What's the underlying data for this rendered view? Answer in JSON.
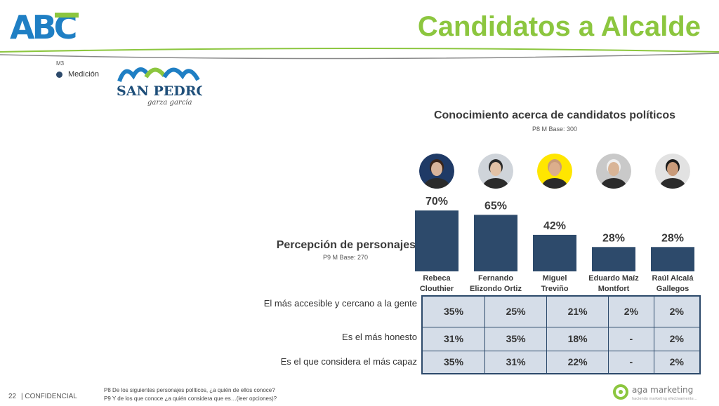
{
  "header": {
    "logo_text": "ABC",
    "title": "Candidatos a Alcalde",
    "legend_code": "M3",
    "legend_label": "Medición",
    "sp_logo_main": "SAN PEDRO",
    "sp_logo_script": "garza garcía"
  },
  "chart_title": "Conocimiento acerca de candidatos políticos",
  "chart_subtitle": "P8 M Base: 300",
  "perception_title": "Percepción de personajes",
  "perception_subtitle": "P9 M Base: 270",
  "chart_data": {
    "type": "bar",
    "title": "Conocimiento acerca de candidatos políticos",
    "categories": [
      [
        "Rebeca",
        "Clouthier"
      ],
      [
        "Fernando",
        "Elizondo Ortiz"
      ],
      [
        "Miguel",
        "Treviño"
      ],
      [
        "Eduardo Maíz",
        "Montfort"
      ],
      [
        "Raúl Alcalá",
        "Gallegos"
      ]
    ],
    "values": [
      70,
      65,
      42,
      28,
      28
    ],
    "value_labels": [
      "70%",
      "65%",
      "42%",
      "28%",
      "28%"
    ],
    "unit": "%",
    "ylim": [
      0,
      100
    ],
    "grid": false,
    "bar_color": "#2d4a6b"
  },
  "table": {
    "rows": [
      {
        "label": "El más accesible y cercano a la gente",
        "values": [
          "35%",
          "25%",
          "21%",
          "2%",
          "2%"
        ]
      },
      {
        "label": "Es el más honesto",
        "values": [
          "31%",
          "35%",
          "18%",
          "-",
          "2%"
        ]
      },
      {
        "label": "Es el que considera el más capaz",
        "values": [
          "35%",
          "31%",
          "22%",
          "-",
          "2%"
        ]
      }
    ]
  },
  "photos": [
    {
      "bg": "#1f3a66",
      "skin": "#d9b49a",
      "hair": "#3a2418"
    },
    {
      "bg": "#cfd4da",
      "skin": "#e3c2a6",
      "hair": "#2a2a2a"
    },
    {
      "bg": "#ffe600",
      "skin": "#dcae8c",
      "hair": "#c89a78"
    },
    {
      "bg": "#c9c9c9",
      "skin": "#d9b597",
      "hair": "#f0f0f0"
    },
    {
      "bg": "#e2e2e2",
      "skin": "#c99b7a",
      "hair": "#1a1a1a"
    }
  ],
  "footer": {
    "page_number": "22",
    "confidential": "| CONFIDENCIAL",
    "footnote_1": "P8 De los siguientes personajes políticos, ¿a quién de ellos conoce?",
    "footnote_2": "P9 Y de los que conoce ¿a quién considera que es…(leer opciones)?",
    "brand": "aga marketing",
    "brand_tagline": "haciendo marketing efectivamente…"
  },
  "colors": {
    "accent_green": "#8cc63f",
    "abc_blue": "#1f7fc4",
    "navy": "#2d4a6b",
    "cell_bg": "#d5dde8"
  }
}
